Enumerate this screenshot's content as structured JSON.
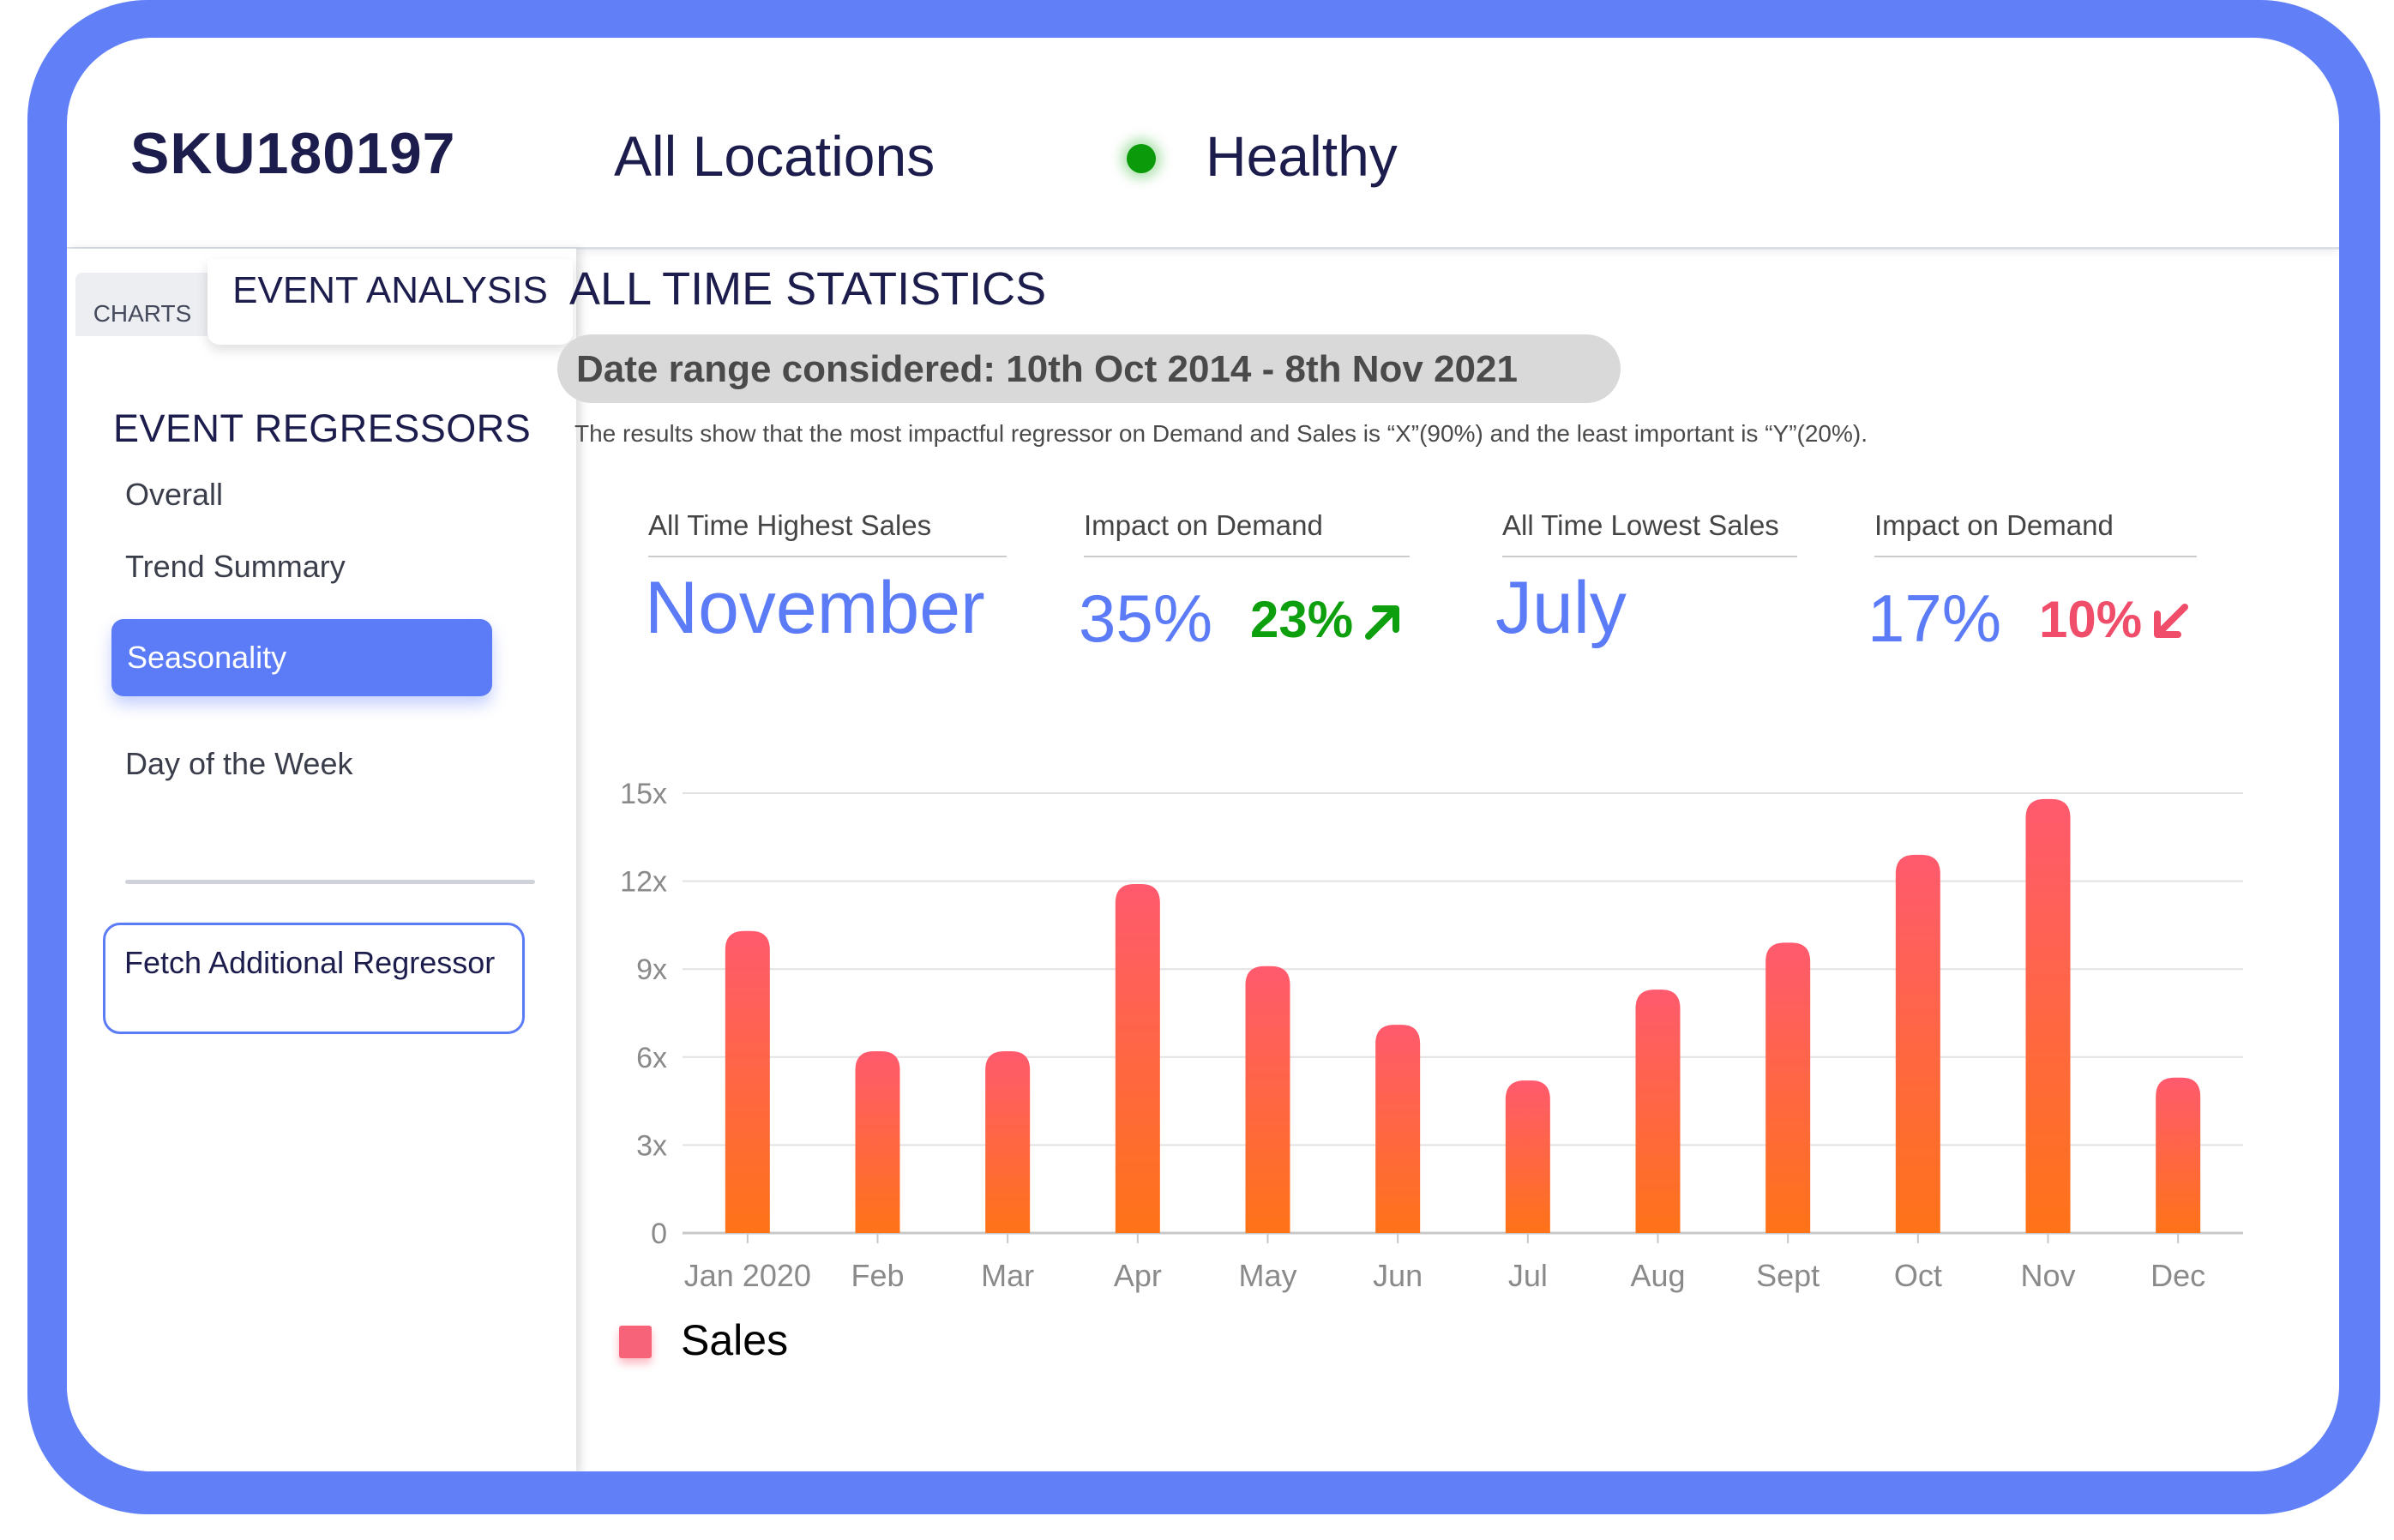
{
  "header": {
    "sku": "SKU180197",
    "location": "All Locations",
    "status": "Healthy",
    "status_color": "#0a9a0a"
  },
  "tabs": {
    "charts": "CHARTS",
    "event_analysis": "EVENT ANALYSIS"
  },
  "sidebar": {
    "heading": "EVENT REGRESSORS",
    "items": [
      {
        "label": "Overall",
        "active": false
      },
      {
        "label": "Trend Summary",
        "active": false
      },
      {
        "label": "Seasonality",
        "active": true
      },
      {
        "label": "Day of the Week",
        "active": false
      }
    ],
    "fetch_button": "Fetch Additional Regressor"
  },
  "main": {
    "title": "ALL TIME STATISTICS",
    "date_range": "Date range considered: 10th Oct 2014 - 8th Nov 2021",
    "note": "The results show that the most impactful regressor on Demand and Sales is “X”(90%) and the least important is “Y”(20%).",
    "stats": {
      "highest_label": "All Time Highest Sales",
      "highest_value": "November",
      "impact_label_1": "Impact on Demand",
      "impact_value_1": "35%",
      "change_1": "23%",
      "lowest_label": "All Time Lowest Sales",
      "lowest_value": "July",
      "impact_label_2": "Impact on Demand",
      "impact_value_2": "17%",
      "change_2": "10%"
    },
    "colors": {
      "accent": "#5b7cf6",
      "up": "#0d9f0d",
      "down": "#ef4d6a",
      "bar_top": "#ff5a6e",
      "bar_bottom": "#ff7318"
    }
  },
  "chart_data": {
    "type": "bar",
    "categories": [
      "Jan 2020",
      "Feb",
      "Mar",
      "Apr",
      "May",
      "Jun",
      "Jul",
      "Aug",
      "Sept",
      "Oct",
      "Nov",
      "Dec"
    ],
    "series": [
      {
        "name": "Sales",
        "values": [
          10.3,
          6.2,
          6.2,
          11.9,
          9.1,
          7.1,
          5.2,
          8.3,
          9.9,
          12.9,
          14.8,
          5.3
        ]
      }
    ],
    "yticks": [
      "0",
      "3x",
      "6x",
      "9x",
      "12x",
      "15x"
    ],
    "ylim": [
      0,
      15
    ],
    "grid": true,
    "legend": "bottom-left"
  }
}
